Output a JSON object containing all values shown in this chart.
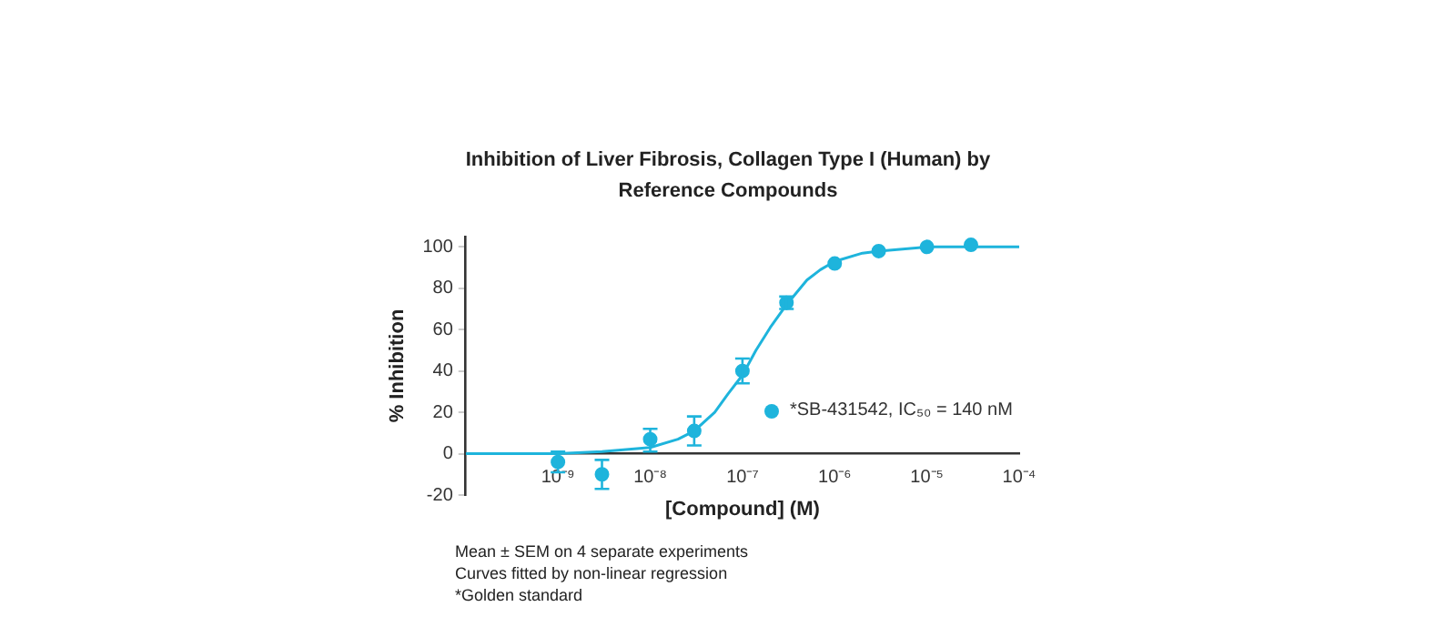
{
  "chart_data": {
    "type": "scatter",
    "title": "Inhibition of Liver Fibrosis, Collagen Type I (Human) by Reference Compounds",
    "xlabel": "[Compound] (M)",
    "ylabel": "% Inhibition",
    "log": "x",
    "xlim": [
      1e-10,
      0.0001
    ],
    "xticks": [
      {
        "value": 1e-09,
        "label": "10⁻⁹"
      },
      {
        "value": 1e-08,
        "label": "10⁻⁸"
      },
      {
        "value": 1e-07,
        "label": "10⁻⁷"
      },
      {
        "value": 1e-06,
        "label": "10⁻⁶"
      },
      {
        "value": 1e-05,
        "label": "10⁻⁵"
      },
      {
        "value": 0.0001,
        "label": "10⁻⁴"
      }
    ],
    "ylim": [
      -20,
      105
    ],
    "yticks": [
      -20,
      0,
      20,
      40,
      60,
      80,
      100
    ],
    "grid": false,
    "legend": "bottom right",
    "marker": "circle",
    "series": [
      {
        "name": "*SB-431542, IC₅₀ = 140 nM",
        "color": "#1eb4dc",
        "x": [
          1e-09,
          3e-09,
          1e-08,
          3e-08,
          1e-07,
          3e-07,
          1e-06,
          3e-06,
          1e-05,
          3e-05
        ],
        "values": [
          -4,
          -10,
          7,
          11,
          40,
          73,
          92,
          98,
          100,
          101
        ],
        "errors": [
          5,
          7,
          [
            1,
            12
          ],
          7,
          6,
          3,
          null,
          null,
          null,
          null
        ]
      },
      {
        "type": "line",
        "color": "#1eb4dc",
        "marker": "none",
        "x": [
          1e-10,
          1e-09,
          3e-09,
          1e-08,
          2e-08,
          3e-08,
          5e-08,
          7e-08,
          1e-07,
          1.4e-07,
          2e-07,
          3e-07,
          5e-07,
          7e-07,
          1e-06,
          2e-06,
          3e-06,
          1e-05,
          0.0001
        ],
        "values": [
          0,
          0,
          1,
          3,
          7,
          11,
          20,
          29,
          38,
          50,
          61,
          72,
          84,
          89,
          93,
          97,
          98,
          100,
          100
        ]
      }
    ],
    "annotations": [
      "Mean ± SEM on 4 separate experiments",
      "Curves fitted by non-linear regression",
      "*Golden standard"
    ]
  }
}
